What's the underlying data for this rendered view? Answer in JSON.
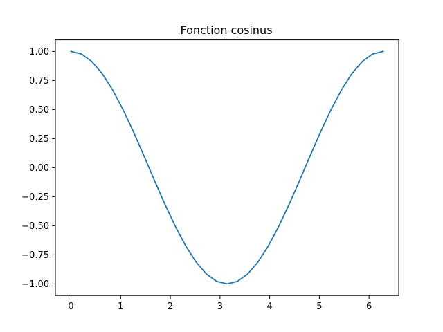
{
  "chart_data": {
    "type": "line",
    "title": "Fonction cosinus",
    "xlabel": "",
    "ylabel": "",
    "xlim": [
      -0.3142,
      6.5974
    ],
    "ylim": [
      -1.1,
      1.1
    ],
    "grid": false,
    "legend": "none",
    "x_ticks": [
      {
        "value": 0,
        "label": "0"
      },
      {
        "value": 1,
        "label": "1"
      },
      {
        "value": 2,
        "label": "2"
      },
      {
        "value": 3,
        "label": "3"
      },
      {
        "value": 4,
        "label": "4"
      },
      {
        "value": 5,
        "label": "5"
      },
      {
        "value": 6,
        "label": "6"
      }
    ],
    "y_ticks": [
      {
        "value": -1.0,
        "label": "−1.00"
      },
      {
        "value": -0.75,
        "label": "−0.75"
      },
      {
        "value": -0.5,
        "label": "−0.50"
      },
      {
        "value": -0.25,
        "label": "−0.25"
      },
      {
        "value": 0.0,
        "label": "0.00"
      },
      {
        "value": 0.25,
        "label": "0.25"
      },
      {
        "value": 0.5,
        "label": "0.50"
      },
      {
        "value": 0.75,
        "label": "0.75"
      },
      {
        "value": 1.0,
        "label": "1.00"
      }
    ],
    "series": [
      {
        "color": "#1f77b4",
        "x": [
          0.0,
          0.2094,
          0.4189,
          0.6283,
          0.8378,
          1.0472,
          1.2566,
          1.4661,
          1.6755,
          1.885,
          2.0944,
          2.3038,
          2.5133,
          2.7227,
          2.9322,
          3.1416,
          3.351,
          3.5605,
          3.7699,
          3.9794,
          4.1888,
          4.3982,
          4.6077,
          4.8171,
          5.0265,
          5.236,
          5.4454,
          5.6549,
          5.8643,
          6.0737,
          6.2832
        ],
        "y": [
          1.0,
          0.9781,
          0.9135,
          0.809,
          0.6691,
          0.5,
          0.309,
          0.1045,
          -0.1045,
          -0.309,
          -0.5,
          -0.6691,
          -0.809,
          -0.9135,
          -0.9781,
          -1.0,
          -0.9781,
          -0.9135,
          -0.809,
          -0.6691,
          -0.5,
          -0.309,
          -0.1045,
          0.1045,
          0.309,
          0.5,
          0.6691,
          0.809,
          0.9135,
          0.9781,
          1.0
        ]
      }
    ]
  }
}
